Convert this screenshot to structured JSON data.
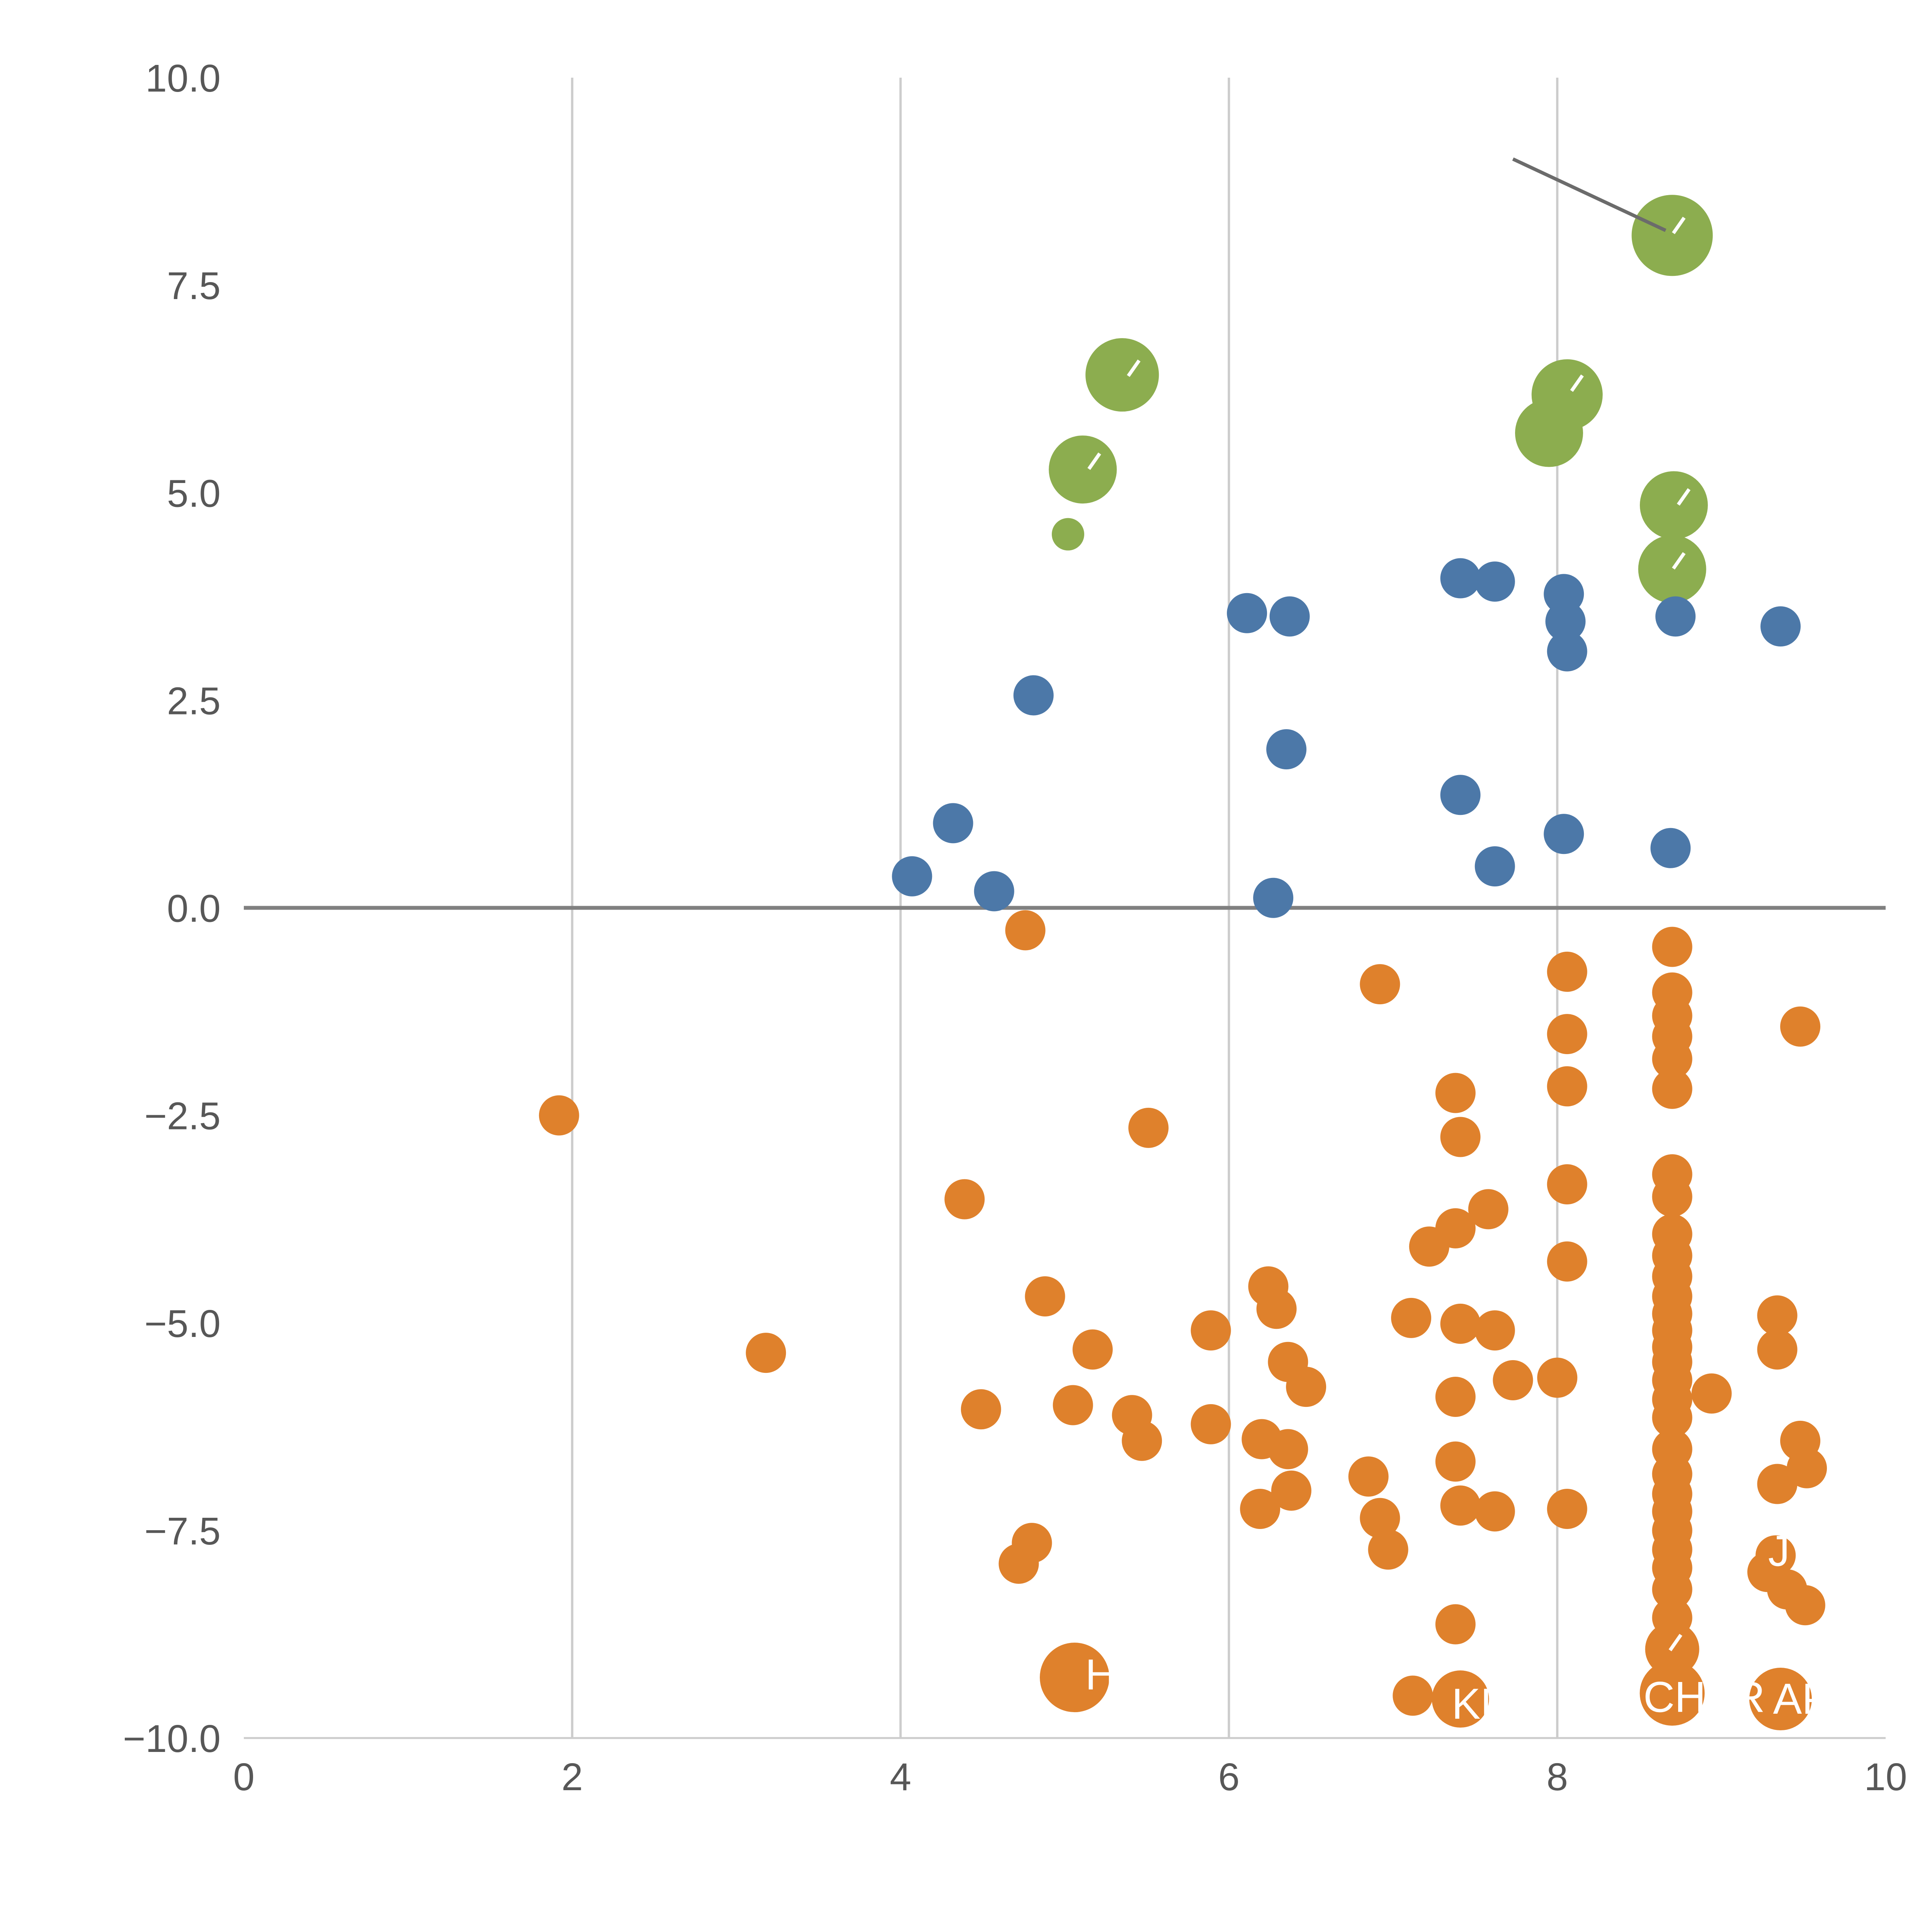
{
  "chart_data": {
    "type": "scatter",
    "title": "",
    "xlabel": "",
    "ylabel": "",
    "xlim": [
      0,
      10
    ],
    "ylim": [
      -10,
      10
    ],
    "legend_position": "none",
    "grid": true,
    "vertical_gridlines_at": [
      2,
      4,
      6,
      8
    ],
    "zero_line_y": 0,
    "x_ticks": [
      0,
      2,
      4,
      6,
      8,
      10
    ],
    "x_tick_labels": [
      "0",
      "2",
      "4",
      "6",
      "8",
      "10"
    ],
    "y_ticks": [
      10,
      7.5,
      5,
      2.5,
      0,
      -2.5,
      -5,
      -7.5,
      -10
    ],
    "y_tick_labels": [
      "10.0",
      "7.5",
      "5.0",
      "2.5",
      "0.0",
      "−2.5",
      "−5.0",
      "−7.5",
      "−10.0"
    ],
    "default_radius": 52,
    "colors": {
      "green": "#8CAD4F",
      "blue": "#4C78A8",
      "orange": "#DF812C",
      "grid": "#CCCCCC",
      "zero_line": "#808080",
      "annotation": "#6B6B6B",
      "tick_label": "#575757",
      "label_text": "#FFFFFF"
    },
    "series": [
      {
        "name": "green-series",
        "color": "#8CAD4F",
        "points_xyr": [
          [
            8.7,
            8.1,
            105
          ],
          [
            5.35,
            6.42,
            95
          ],
          [
            8.06,
            6.18,
            92
          ],
          [
            7.95,
            5.72,
            88
          ],
          [
            5.11,
            5.28,
            88
          ],
          [
            8.71,
            4.85,
            88
          ],
          [
            5.02,
            4.5,
            42
          ],
          [
            8.7,
            4.08,
            88
          ]
        ]
      },
      {
        "name": "blue-series",
        "color": "#4C78A8",
        "points_xyr": [
          [
            7.41,
            3.97
          ],
          [
            7.62,
            3.93
          ],
          [
            8.04,
            3.78
          ],
          [
            6.11,
            3.55
          ],
          [
            6.37,
            3.51
          ],
          [
            8.72,
            3.51
          ],
          [
            8.05,
            3.45
          ],
          [
            9.36,
            3.39
          ],
          [
            8.06,
            3.09
          ],
          [
            4.81,
            2.56
          ],
          [
            6.35,
            1.91
          ],
          [
            7.41,
            1.36
          ],
          [
            4.32,
            1.02
          ],
          [
            8.04,
            0.89
          ],
          [
            8.69,
            0.72
          ],
          [
            7.62,
            0.5
          ],
          [
            4.07,
            0.38
          ],
          [
            4.57,
            0.2
          ],
          [
            6.27,
            0.12
          ]
        ]
      },
      {
        "name": "orange-series",
        "color": "#DF812C",
        "points_xyr": [
          [
            4.76,
            -0.27
          ],
          [
            8.7,
            -0.47
          ],
          [
            8.06,
            -0.77
          ],
          [
            6.92,
            -0.92
          ],
          [
            8.7,
            -1.02
          ],
          [
            8.7,
            -1.3
          ],
          [
            9.48,
            -1.43
          ],
          [
            8.06,
            -1.52
          ],
          [
            8.7,
            -1.55
          ],
          [
            8.7,
            -1.82
          ],
          [
            8.06,
            -2.15
          ],
          [
            8.7,
            -2.18
          ],
          [
            7.38,
            -2.23
          ],
          [
            1.92,
            -2.5
          ],
          [
            5.51,
            -2.65
          ],
          [
            7.41,
            -2.76
          ],
          [
            8.7,
            -3.21
          ],
          [
            8.06,
            -3.33
          ],
          [
            8.7,
            -3.48
          ],
          [
            4.39,
            -3.51
          ],
          [
            7.58,
            -3.63
          ],
          [
            7.38,
            -3.86
          ],
          [
            8.7,
            -3.93
          ],
          [
            7.22,
            -4.08
          ],
          [
            8.7,
            -4.19
          ],
          [
            8.06,
            -4.26
          ],
          [
            8.7,
            -4.44
          ],
          [
            6.24,
            -4.56
          ],
          [
            4.88,
            -4.68
          ],
          [
            8.7,
            -4.68
          ],
          [
            6.29,
            -4.83
          ],
          [
            8.7,
            -4.89
          ],
          [
            9.34,
            -4.91
          ],
          [
            7.11,
            -4.94
          ],
          [
            7.41,
            -5.01
          ],
          [
            5.89,
            -5.09
          ],
          [
            7.62,
            -5.09
          ],
          [
            8.7,
            -5.09
          ],
          [
            8.7,
            -5.29
          ],
          [
            5.17,
            -5.32
          ],
          [
            9.34,
            -5.32
          ],
          [
            3.18,
            -5.36
          ],
          [
            6.36,
            -5.47
          ],
          [
            8.7,
            -5.47
          ],
          [
            8.0,
            -5.66
          ],
          [
            7.73,
            -5.69
          ],
          [
            8.7,
            -5.69
          ],
          [
            6.47,
            -5.77
          ],
          [
            8.94,
            -5.85
          ],
          [
            7.38,
            -5.89
          ],
          [
            8.7,
            -5.92
          ],
          [
            5.05,
            -5.99
          ],
          [
            4.49,
            -6.04
          ],
          [
            5.41,
            -6.11
          ],
          [
            8.7,
            -6.14
          ],
          [
            5.89,
            -6.22
          ],
          [
            6.2,
            -6.4
          ],
          [
            5.47,
            -6.42
          ],
          [
            9.48,
            -6.42
          ],
          [
            6.36,
            -6.52
          ],
          [
            8.7,
            -6.52
          ],
          [
            7.38,
            -6.67
          ],
          [
            9.52,
            -6.75
          ],
          [
            8.7,
            -6.82
          ],
          [
            6.85,
            -6.85
          ],
          [
            9.34,
            -6.94
          ],
          [
            6.38,
            -7.02
          ],
          [
            8.7,
            -7.06
          ],
          [
            7.41,
            -7.2
          ],
          [
            6.19,
            -7.24
          ],
          [
            8.06,
            -7.24
          ],
          [
            7.62,
            -7.27
          ],
          [
            8.7,
            -7.27
          ],
          [
            6.92,
            -7.35
          ],
          [
            8.7,
            -7.5
          ],
          [
            4.8,
            -7.65
          ],
          [
            8.7,
            -7.73
          ],
          [
            6.97,
            -7.73
          ],
          [
            9.33,
            -7.8
          ],
          [
            4.72,
            -7.9
          ],
          [
            8.7,
            -7.95
          ],
          [
            9.28,
            -8.0
          ],
          [
            8.7,
            -8.21
          ],
          [
            9.4,
            -8.21
          ],
          [
            9.51,
            -8.4
          ],
          [
            8.7,
            -8.55
          ],
          [
            7.38,
            -8.63
          ],
          [
            8.7,
            -8.93,
            70
          ],
          [
            5.06,
            -9.27,
            90
          ],
          [
            8.7,
            -9.46,
            84
          ],
          [
            7.12,
            -9.49
          ],
          [
            7.41,
            -9.53,
            74
          ],
          [
            9.36,
            -9.53,
            81
          ]
        ]
      }
    ],
    "point_labels": [
      {
        "text": "H",
        "x": 5.22,
        "y": -9.23
      },
      {
        "text": "KD",
        "x": 7.54,
        "y": -9.58
      },
      {
        "text": "CHR",
        "x": 8.81,
        "y": -9.5
      },
      {
        "text": "R",
        "x": 9.17,
        "y": -9.5
      },
      {
        "text": "AP",
        "x": 9.49,
        "y": -9.52
      },
      {
        "text": "J",
        "x": 9.35,
        "y": -7.74
      }
    ],
    "white_fragments": [
      [
        5.42,
        6.5
      ],
      [
        5.18,
        5.38
      ],
      [
        8.12,
        6.32
      ],
      [
        8.77,
        4.95
      ],
      [
        8.74,
        4.18
      ],
      [
        8.74,
        8.22
      ],
      [
        8.72,
        -8.85
      ]
    ],
    "annotation_line": {
      "x1": 7.73,
      "y1": 9.02,
      "x2": 8.66,
      "y2": 8.16
    }
  }
}
